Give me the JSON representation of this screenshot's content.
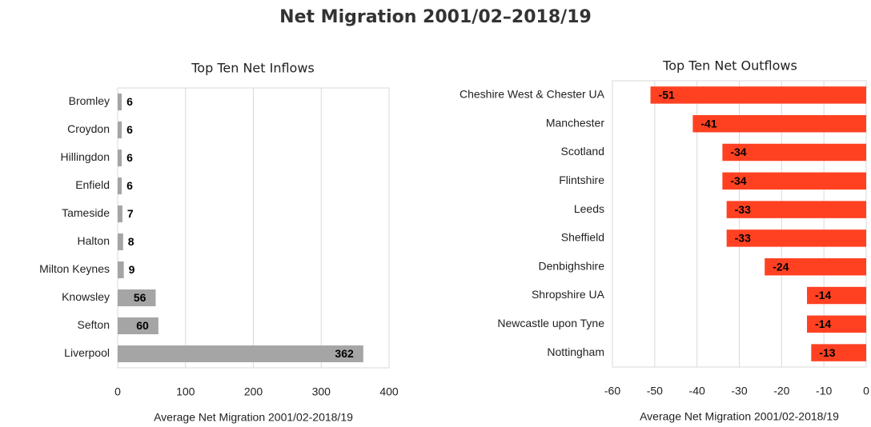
{
  "title": "Net Migration 2001/02–2018/19",
  "chart_data": [
    {
      "type": "bar",
      "title": "Top Ten Net Inflows",
      "xlabel": "Average Net Migration 2001/02-2018/19",
      "categories": [
        "Bromley",
        "Croydon",
        "Hillingdon",
        "Enfield",
        "Tameside",
        "Halton",
        "Milton Keynes",
        "Knowsley",
        "Sefton",
        "Liverpool"
      ],
      "values": [
        6,
        6,
        6,
        6,
        7,
        8,
        9,
        56,
        60,
        362
      ],
      "color": "#a5a5a5",
      "xlim": [
        0,
        400
      ],
      "xticks": [
        0,
        100,
        200,
        300,
        400
      ],
      "grid": true
    },
    {
      "type": "bar",
      "title": "Top Ten Net Outflows",
      "xlabel": "Average Net Migration 2001/02-2018/19",
      "categories": [
        "Cheshire West & Chester UA",
        "Manchester",
        "Scotland",
        "Flintshire",
        "Leeds",
        "Sheffield",
        "Denbighshire",
        "Shropshire UA",
        "Newcastle upon Tyne",
        "Nottingham"
      ],
      "values": [
        -51,
        -41,
        -34,
        -34,
        -33,
        -33,
        -24,
        -14,
        -14,
        -13
      ],
      "color": "#ff4122",
      "xlim": [
        -60,
        0
      ],
      "xticks": [
        -60,
        -50,
        -40,
        -30,
        -20,
        -10,
        0
      ],
      "grid": true
    }
  ]
}
